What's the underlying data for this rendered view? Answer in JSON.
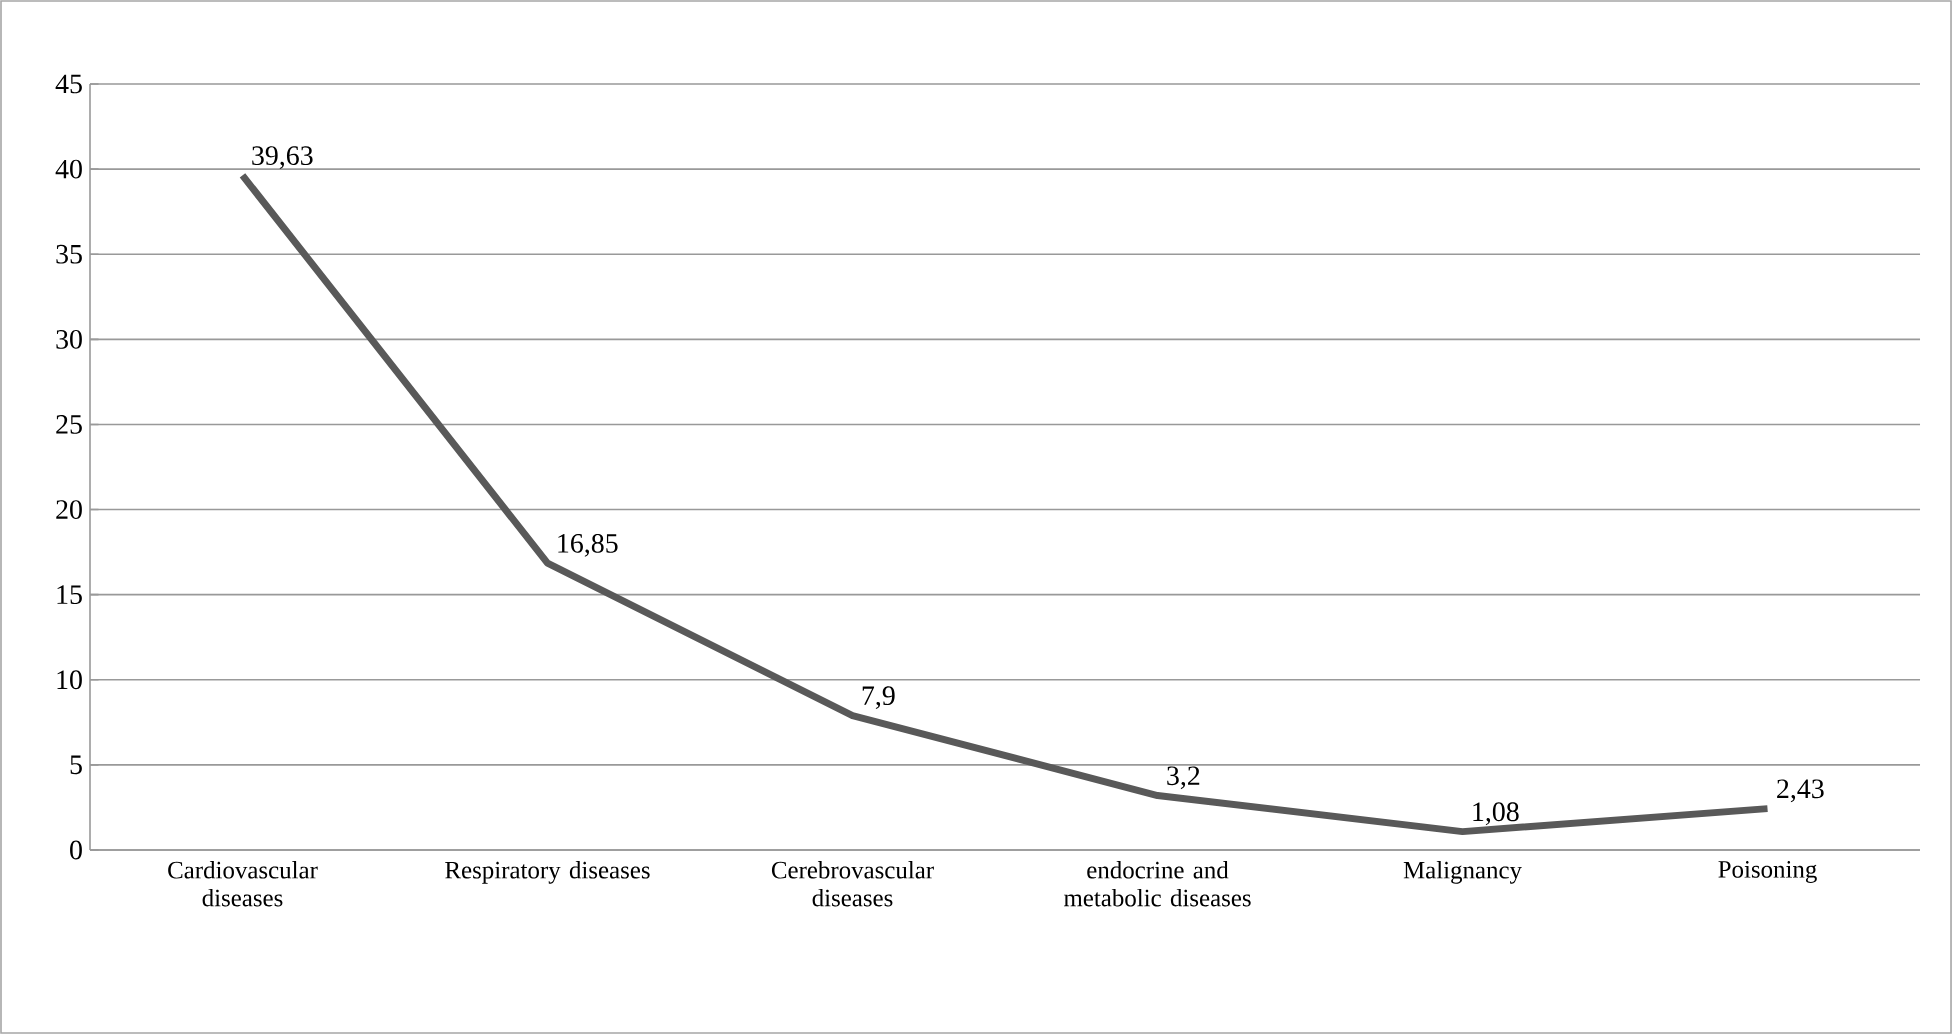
{
  "chart_data": {
    "type": "line",
    "categories": [
      "Cardiovascular diseases",
      "Respiratory diseases",
      "Cerebrovascular diseases",
      "endocrine and metabolic diseases",
      "Malignancy",
      "Poisoning"
    ],
    "values": [
      39.63,
      16.85,
      7.9,
      3.2,
      1.08,
      2.43
    ],
    "value_labels": [
      "39,63",
      "16,85",
      "7,9",
      "3,2",
      "1,08",
      "2,43"
    ],
    "color": "#595959",
    "ylim": [
      0,
      45
    ],
    "yticks": [
      0,
      5,
      10,
      15,
      20,
      25,
      30,
      35,
      40,
      45
    ],
    "grid": "y"
  }
}
